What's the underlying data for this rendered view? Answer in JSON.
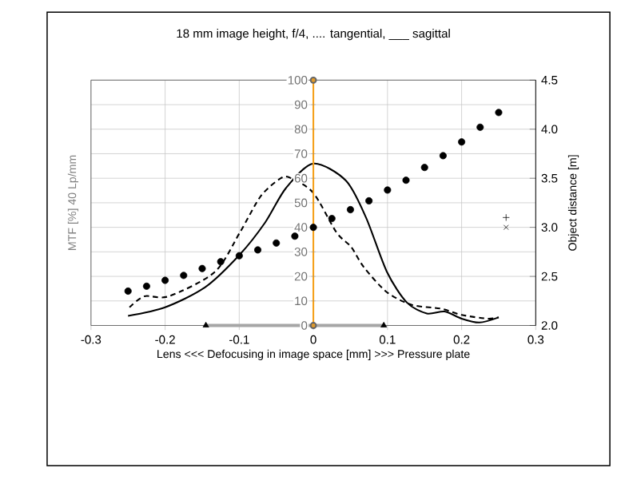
{
  "chart_data": {
    "type": "line",
    "title": "18 mm image height, f/4, .... tangential, ___ sagittal",
    "xlabel": "Lens <<<  Defocusing in image space   [mm]  >>> Pressure plate",
    "ylabel": "MTF [%]    40  Lp/mm",
    "y2label": "Object distance [m]",
    "xlim": [
      -0.3,
      0.3
    ],
    "xticks": [
      -0.3,
      -0.2,
      -0.1,
      0,
      0.1,
      0.2,
      0.3
    ],
    "ylim": [
      0,
      100
    ],
    "yticks": [
      0,
      10,
      20,
      30,
      40,
      50,
      60,
      70,
      80,
      90,
      100
    ],
    "y2lim": [
      2,
      4.5
    ],
    "y2ticks": [
      {
        "value": 2,
        "label": "2.0"
      },
      2.5,
      {
        "value": 3,
        "label": "3.0"
      },
      3.5,
      {
        "value": 4,
        "label": "4.0"
      },
      4.5
    ],
    "grid": true,
    "series": [
      {
        "line_style": "dashed",
        "marker": "none",
        "color": "#000000",
        "x": [
          -0.248,
          -0.228,
          -0.195,
          -0.133,
          -0.099,
          -0.071,
          -0.044,
          -0.03,
          0,
          0.031,
          0.051,
          0.068,
          0.099,
          0.133,
          0.173,
          0.2,
          0.235,
          0.25
        ],
        "values": [
          7.4,
          11.9,
          11.9,
          21.8,
          38,
          52.7,
          60,
          60,
          54,
          38,
          32,
          23.8,
          13.6,
          8.4,
          6.8,
          4.3,
          2.8,
          3.3
        ]
      },
      {
        "line_style": "solid",
        "marker": "none",
        "color": "#000000",
        "x": [
          -0.25,
          -0.2,
          -0.146,
          -0.099,
          -0.065,
          -0.037,
          0,
          0.044,
          0.071,
          0.099,
          0.126,
          0.153,
          0.177,
          0.2,
          0.224,
          0.25
        ],
        "values": [
          3.9,
          7.4,
          15.6,
          29,
          42,
          56,
          66,
          59,
          44,
          22,
          9.4,
          4.9,
          5.7,
          2.8,
          1.2,
          3.3
        ]
      },
      {
        "type": "scatter",
        "axis": "y2",
        "marker": "circle",
        "color": "#000000",
        "x": [
          -0.25,
          -0.225,
          -0.2,
          -0.175,
          -0.15,
          -0.125,
          -0.1,
          -0.075,
          -0.05,
          -0.025,
          0,
          0.025,
          0.05,
          0.075,
          0.1,
          0.125,
          0.15,
          0.175,
          0.2,
          0.225,
          0.25
        ],
        "values": [
          2.35,
          2.4,
          2.46,
          2.51,
          2.58,
          2.65,
          2.71,
          2.77,
          2.84,
          2.91,
          3.0,
          3.09,
          3.18,
          3.27,
          3.38,
          3.48,
          3.61,
          3.73,
          3.87,
          4.02,
          4.17
        ]
      },
      {
        "line_style": "solid",
        "marker": "none",
        "color": "#a6a6a6",
        "x": [
          -0.145,
          0.095
        ],
        "values": [
          0,
          0
        ]
      },
      {
        "type": "scatter",
        "marker": "triangle",
        "color": "#000000",
        "x": [
          -0.145,
          0.095
        ],
        "values": [
          0,
          0
        ]
      },
      {
        "line_style": "solid",
        "marker": "circle",
        "color": "#f5a01a",
        "x": [
          0,
          0
        ],
        "values": [
          0,
          100
        ]
      },
      {
        "type": "scatter",
        "axis": "y2",
        "marker": "cross",
        "color": "#000000",
        "x": [
          0.26
        ],
        "values": [
          3.0
        ]
      },
      {
        "type": "scatter",
        "axis": "y2",
        "marker": "plus",
        "color": "#000000",
        "x": [
          0.26
        ],
        "values": [
          3.1
        ]
      }
    ]
  }
}
